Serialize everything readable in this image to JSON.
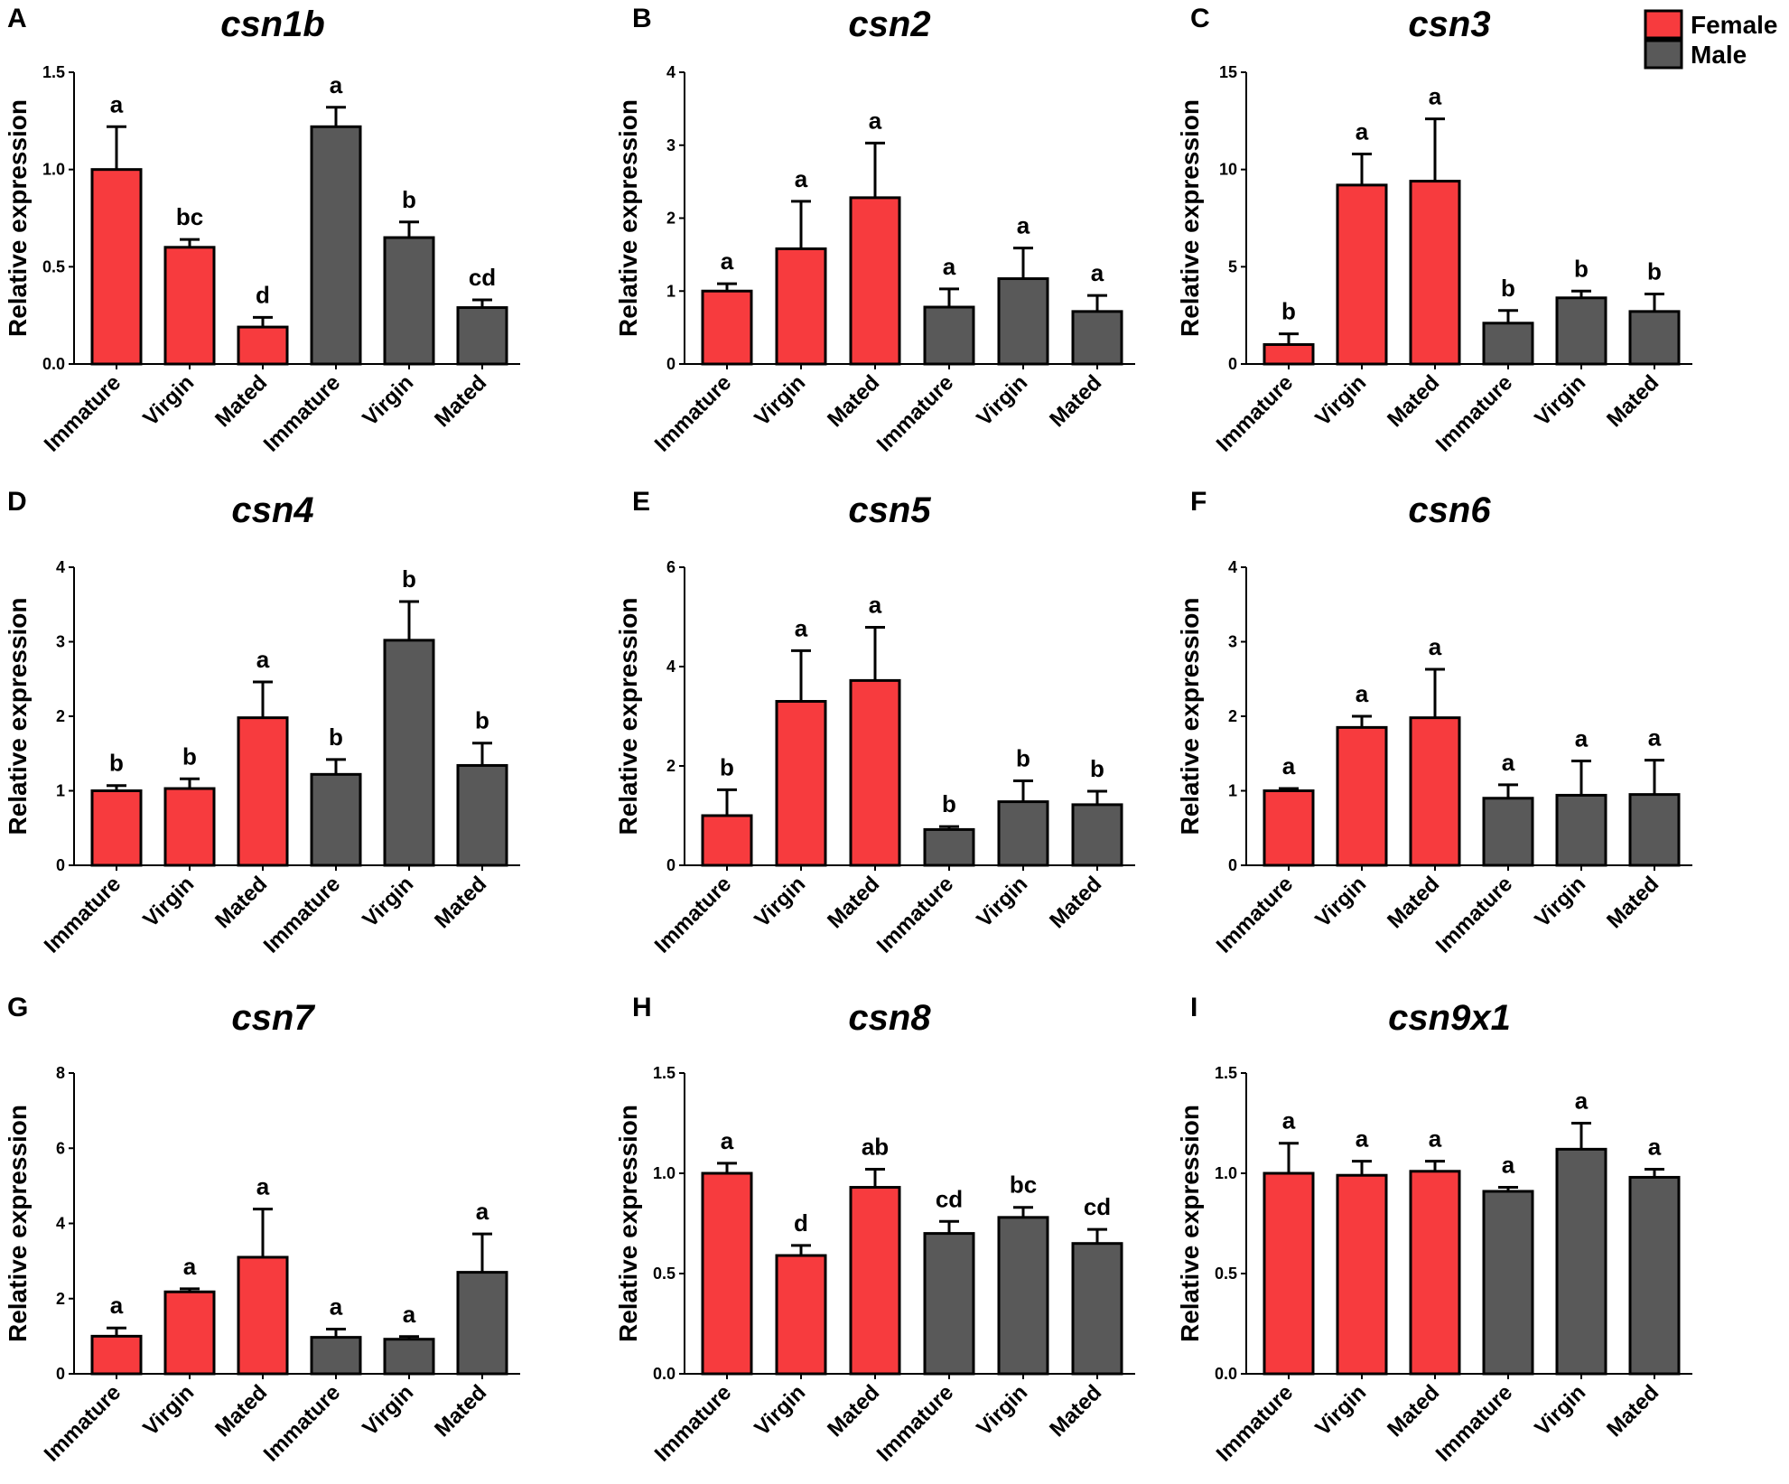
{
  "legend": {
    "entries": [
      {
        "label": "Female",
        "color": "#f73b3e"
      },
      {
        "label": "Male",
        "color": "#595959"
      }
    ]
  },
  "chart_data": [
    {
      "panel": "A",
      "title": "csn1b",
      "type": "bar",
      "ylabel": "Relative expression",
      "categories": [
        "Immature",
        "Virgin",
        "Mated",
        "Immature",
        "Virgin",
        "Mated"
      ],
      "groups": [
        "Female",
        "Female",
        "Female",
        "Male",
        "Male",
        "Male"
      ],
      "values": [
        1.0,
        0.6,
        0.19,
        1.22,
        0.65,
        0.29
      ],
      "errors": [
        0.22,
        0.04,
        0.05,
        0.1,
        0.08,
        0.04
      ],
      "significance": [
        "a",
        "bc",
        "d",
        "a",
        "b",
        "cd"
      ],
      "ylim": [
        0,
        1.5
      ],
      "yticks": [
        "0.0",
        "0.5",
        "1.0",
        "1.5"
      ]
    },
    {
      "panel": "B",
      "title": "csn2",
      "type": "bar",
      "ylabel": "Relative expression",
      "categories": [
        "Immature",
        "Virgin",
        "Mated",
        "Immature",
        "Virgin",
        "Mated"
      ],
      "groups": [
        "Female",
        "Female",
        "Female",
        "Male",
        "Male",
        "Male"
      ],
      "values": [
        1.0,
        1.58,
        2.28,
        0.78,
        1.17,
        0.72
      ],
      "errors": [
        0.1,
        0.65,
        0.75,
        0.25,
        0.42,
        0.22
      ],
      "significance": [
        "a",
        "a",
        "a",
        "a",
        "a",
        "a"
      ],
      "ylim": [
        0,
        4
      ],
      "yticks": [
        "0",
        "1",
        "2",
        "3",
        "4"
      ]
    },
    {
      "panel": "C",
      "title": "csn3",
      "type": "bar",
      "ylabel": "Relative expression",
      "categories": [
        "Immature",
        "Virgin",
        "Mated",
        "Immature",
        "Virgin",
        "Mated"
      ],
      "groups": [
        "Female",
        "Female",
        "Female",
        "Male",
        "Male",
        "Male"
      ],
      "values": [
        1.0,
        9.2,
        9.4,
        2.1,
        3.4,
        2.7
      ],
      "errors": [
        0.55,
        1.6,
        3.2,
        0.65,
        0.35,
        0.9
      ],
      "significance": [
        "b",
        "a",
        "a",
        "b",
        "b",
        "b"
      ],
      "ylim": [
        0,
        15
      ],
      "yticks": [
        "0",
        "5",
        "10",
        "15"
      ]
    },
    {
      "panel": "D",
      "title": "csn4",
      "type": "bar",
      "ylabel": "Relative expression",
      "categories": [
        "Immature",
        "Virgin",
        "Mated",
        "Immature",
        "Virgin",
        "Mated"
      ],
      "groups": [
        "Female",
        "Female",
        "Female",
        "Male",
        "Male",
        "Male"
      ],
      "values": [
        1.0,
        1.03,
        1.98,
        1.22,
        3.02,
        1.34
      ],
      "errors": [
        0.07,
        0.13,
        0.48,
        0.2,
        0.52,
        0.3
      ],
      "significance": [
        "b",
        "b",
        "a",
        "b",
        "b",
        "b"
      ],
      "ylim": [
        0,
        4
      ],
      "yticks": [
        "0",
        "1",
        "2",
        "3",
        "4"
      ]
    },
    {
      "panel": "E",
      "title": "csn5",
      "type": "bar",
      "ylabel": "Relative expression",
      "categories": [
        "Immature",
        "Virgin",
        "Mated",
        "Immature",
        "Virgin",
        "Mated"
      ],
      "groups": [
        "Female",
        "Female",
        "Female",
        "Male",
        "Male",
        "Male"
      ],
      "values": [
        1.0,
        3.3,
        3.72,
        0.72,
        1.28,
        1.22
      ],
      "errors": [
        0.52,
        1.02,
        1.07,
        0.06,
        0.42,
        0.27
      ],
      "significance": [
        "b",
        "a",
        "a",
        "b",
        "b",
        "b"
      ],
      "ylim": [
        0,
        6
      ],
      "yticks": [
        "0",
        "2",
        "4",
        "6"
      ]
    },
    {
      "panel": "F",
      "title": "csn6",
      "type": "bar",
      "ylabel": "Relative expression",
      "categories": [
        "Immature",
        "Virgin",
        "Mated",
        "Immature",
        "Virgin",
        "Mated"
      ],
      "groups": [
        "Female",
        "Female",
        "Female",
        "Male",
        "Male",
        "Male"
      ],
      "values": [
        1.0,
        1.85,
        1.98,
        0.9,
        0.94,
        0.95
      ],
      "errors": [
        0.03,
        0.15,
        0.65,
        0.18,
        0.46,
        0.46
      ],
      "significance": [
        "a",
        "a",
        "a",
        "a",
        "a",
        "a"
      ],
      "ylim": [
        0,
        4
      ],
      "yticks": [
        "0",
        "1",
        "2",
        "3",
        "4"
      ]
    },
    {
      "panel": "G",
      "title": "csn7",
      "type": "bar",
      "ylabel": "Relative expression",
      "categories": [
        "Immature",
        "Virgin",
        "Mated",
        "Immature",
        "Virgin",
        "Mated"
      ],
      "groups": [
        "Female",
        "Female",
        "Female",
        "Male",
        "Male",
        "Male"
      ],
      "values": [
        1.0,
        2.18,
        3.1,
        0.97,
        0.92,
        2.7
      ],
      "errors": [
        0.22,
        0.08,
        1.28,
        0.22,
        0.07,
        1.02
      ],
      "significance": [
        "a",
        "a",
        "a",
        "a",
        "a",
        "a"
      ],
      "ylim": [
        0,
        8
      ],
      "yticks": [
        "0",
        "2",
        "4",
        "6",
        "8"
      ]
    },
    {
      "panel": "H",
      "title": "csn8",
      "type": "bar",
      "ylabel": "Relative expression",
      "categories": [
        "Immature",
        "Virgin",
        "Mated",
        "Immature",
        "Virgin",
        "Mated"
      ],
      "groups": [
        "Female",
        "Female",
        "Female",
        "Male",
        "Male",
        "Male"
      ],
      "values": [
        1.0,
        0.59,
        0.93,
        0.7,
        0.78,
        0.65
      ],
      "errors": [
        0.05,
        0.05,
        0.09,
        0.06,
        0.05,
        0.07
      ],
      "significance": [
        "a",
        "d",
        "ab",
        "cd",
        "bc",
        "cd"
      ],
      "ylim": [
        0,
        1.5
      ],
      "yticks": [
        "0.0",
        "0.5",
        "1.0",
        "1.5"
      ]
    },
    {
      "panel": "I",
      "title": "csn9x1",
      "type": "bar",
      "ylabel": "Relative expression",
      "categories": [
        "Immature",
        "Virgin",
        "Mated",
        "Immature",
        "Virgin",
        "Mated"
      ],
      "groups": [
        "Female",
        "Female",
        "Female",
        "Male",
        "Male",
        "Male"
      ],
      "values": [
        1.0,
        0.99,
        1.01,
        0.91,
        1.12,
        0.98
      ],
      "errors": [
        0.15,
        0.07,
        0.05,
        0.02,
        0.13,
        0.04
      ],
      "significance": [
        "a",
        "a",
        "a",
        "a",
        "a",
        "a"
      ],
      "ylim": [
        0,
        1.5
      ],
      "yticks": [
        "0.0",
        "0.5",
        "1.0",
        "1.5"
      ]
    }
  ]
}
